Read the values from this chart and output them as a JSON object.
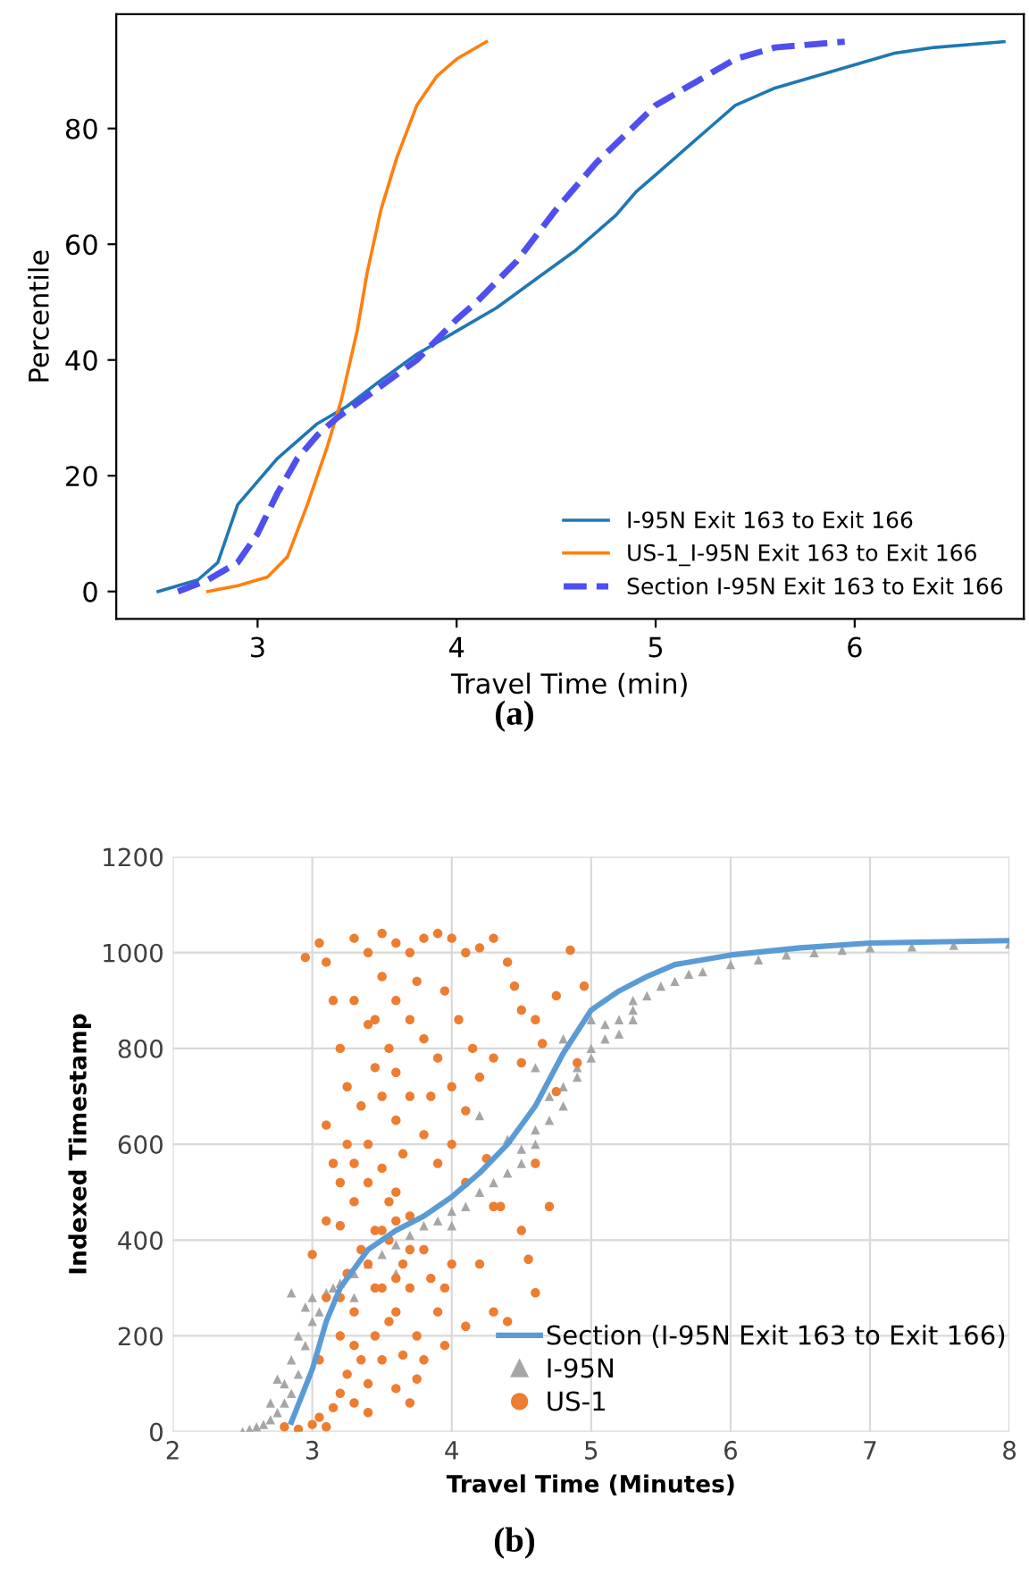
{
  "chart_data": [
    {
      "type": "line",
      "xlabel": "Travel Time (min)",
      "ylabel": "Percentile",
      "xlim": [
        2.29,
        6.85
      ],
      "ylim": [
        -4.75,
        99.75
      ],
      "xticks": [
        3,
        4,
        5,
        6
      ],
      "yticks": [
        0,
        20,
        40,
        60,
        80
      ],
      "grid": false,
      "legend": "bottom right",
      "annotations": [
        "(a)"
      ],
      "series": [
        {
          "name": "I-95N Exit 163 to Exit 166",
          "color": "#1f77b4",
          "line_style": "solid",
          "x": [
            2.5,
            2.7,
            2.8,
            2.85,
            2.9,
            3.0,
            3.1,
            3.2,
            3.3,
            3.45,
            3.6,
            3.8,
            4.0,
            4.2,
            4.4,
            4.6,
            4.8,
            4.9,
            5.0,
            5.1,
            5.2,
            5.3,
            5.4,
            5.6,
            5.8,
            6.0,
            6.2,
            6.4,
            6.75
          ],
          "values": [
            0,
            2,
            5,
            10,
            15,
            19,
            23,
            26,
            29,
            32,
            36,
            41,
            45,
            49,
            54,
            59,
            65,
            69,
            72,
            75,
            78,
            81,
            84,
            87,
            89,
            91,
            93,
            94,
            95
          ]
        },
        {
          "name": "US-1_I-95N Exit 163 to Exit 166",
          "color": "#ff7f0e",
          "line_style": "solid",
          "x": [
            2.75,
            2.9,
            3.05,
            3.15,
            3.25,
            3.35,
            3.42,
            3.5,
            3.55,
            3.62,
            3.7,
            3.8,
            3.9,
            4.0,
            4.15
          ],
          "values": [
            0,
            1,
            2.5,
            6,
            15,
            25,
            33,
            45,
            55,
            66,
            75,
            84,
            89,
            92,
            95
          ]
        },
        {
          "name": "Section I-95N Exit 163 to Exit 166",
          "color": "#4f4ff0",
          "line_style": "dashed",
          "x": [
            2.6,
            2.75,
            2.9,
            3.0,
            3.1,
            3.2,
            3.3,
            3.4,
            3.6,
            3.8,
            4.0,
            4.1,
            4.3,
            4.5,
            4.7,
            4.85,
            5.0,
            5.2,
            5.4,
            5.6,
            5.95
          ],
          "values": [
            0,
            2,
            5,
            10,
            17,
            23,
            27,
            30,
            35,
            40,
            47,
            50,
            57,
            66,
            74,
            79,
            84,
            88,
            92,
            94,
            95
          ]
        }
      ]
    },
    {
      "type": "scatter",
      "xlabel": "Travel Time (Minutes)",
      "ylabel": "Indexed Timestamp",
      "xlim": [
        2,
        8
      ],
      "ylim": [
        0,
        1200
      ],
      "xticks": [
        2,
        3,
        4,
        5,
        6,
        7,
        8
      ],
      "yticks": [
        0,
        200,
        400,
        600,
        800,
        1000,
        1200
      ],
      "grid": true,
      "legend": "bottom right",
      "annotations": [
        "(b)"
      ],
      "series": [
        {
          "name": "Section (I-95N Exit 163 to Exit 166)",
          "type": "line",
          "color": "#5b9bd5",
          "marker": "none",
          "x": [
            2.85,
            3.0,
            3.1,
            3.2,
            3.4,
            3.6,
            3.8,
            4.0,
            4.2,
            4.4,
            4.6,
            4.8,
            5.0,
            5.2,
            5.4,
            5.6,
            6.0,
            6.5,
            7.0,
            8.0
          ],
          "values": [
            20,
            130,
            230,
            300,
            380,
            420,
            450,
            490,
            540,
            600,
            680,
            790,
            880,
            920,
            950,
            975,
            995,
            1010,
            1020,
            1025
          ]
        },
        {
          "name": "I-95N",
          "type": "scatter",
          "color": "#a6a6a6",
          "marker": "triangle",
          "x": [
            2.5,
            2.55,
            2.6,
            2.65,
            2.7,
            2.75,
            2.8,
            2.8,
            2.85,
            2.85,
            2.9,
            2.9,
            2.95,
            2.95,
            2.85,
            3.0,
            3.0,
            3.05,
            3.1,
            3.15,
            3.2,
            3.3,
            3.4,
            3.5,
            3.6,
            3.7,
            3.8,
            3.9,
            4.0,
            4.0,
            4.1,
            4.2,
            4.3,
            4.4,
            4.5,
            4.5,
            4.6,
            4.6,
            4.7,
            4.7,
            4.8,
            4.8,
            4.9,
            4.9,
            5.0,
            5.0,
            5.1,
            5.1,
            5.2,
            5.2,
            5.3,
            5.3,
            5.4,
            5.5,
            5.6,
            5.7,
            5.8,
            6.0,
            6.2,
            6.4,
            6.6,
            6.8,
            7.0,
            7.3,
            7.6,
            8.0,
            4.4,
            4.6,
            5.0,
            5.3,
            3.6,
            3.3,
            2.7,
            2.75,
            4.2,
            4.8
          ],
          "values": [
            0,
            5,
            10,
            15,
            25,
            40,
            60,
            100,
            80,
            150,
            120,
            200,
            180,
            260,
            290,
            230,
            280,
            250,
            290,
            300,
            310,
            330,
            350,
            370,
            390,
            410,
            430,
            440,
            460,
            430,
            470,
            500,
            520,
            540,
            560,
            590,
            600,
            630,
            650,
            700,
            720,
            680,
            760,
            740,
            780,
            800,
            820,
            850,
            860,
            830,
            880,
            900,
            910,
            930,
            940,
            955,
            960,
            975,
            985,
            995,
            1000,
            1005,
            1010,
            1012,
            1015,
            1018,
            610,
            760,
            860,
            860,
            330,
            280,
            60,
            110,
            660,
            820
          ]
        },
        {
          "name": "US-1",
          "type": "scatter",
          "color": "#ed7d31",
          "marker": "circle",
          "x": [
            2.8,
            2.9,
            3.0,
            3.05,
            3.1,
            3.15,
            3.2,
            3.25,
            3.3,
            3.35,
            3.2,
            3.3,
            3.4,
            3.45,
            3.5,
            3.4,
            3.6,
            3.55,
            3.65,
            3.7,
            3.75,
            3.8,
            3.9,
            3.95,
            4.0,
            4.1,
            4.3,
            4.4,
            4.5,
            4.55,
            4.6,
            4.7,
            4.35,
            4.2,
            3.8,
            3.7,
            3.6,
            3.5,
            3.3,
            3.2,
            3.1,
            3.0,
            3.2,
            3.4,
            3.35,
            3.25,
            3.2,
            3.15,
            3.1,
            3.05,
            2.95,
            3.3,
            3.4,
            3.5,
            3.6,
            3.7,
            3.8,
            3.9,
            4.0,
            4.1,
            4.2,
            4.3,
            4.4,
            4.45,
            4.5,
            4.6,
            4.85,
            4.95,
            4.75,
            4.65,
            4.3,
            4.2,
            4.1,
            4.0,
            3.9,
            3.8,
            3.7,
            3.6,
            3.5,
            3.45,
            3.55,
            3.5,
            3.6,
            3.7,
            3.8,
            3.9,
            4.0,
            3.3,
            3.4,
            3.25,
            3.15,
            3.1,
            3.6,
            3.45,
            3.75,
            3.95,
            4.05,
            4.15,
            3.85,
            3.65,
            3.55,
            3.45,
            3.35,
            3.25,
            3.5,
            3.6,
            3.4,
            3.7,
            3.3,
            3.55,
            3.65,
            3.75,
            3.85,
            3.95,
            3.05,
            3.1,
            3.2,
            3.45,
            3.6,
            3.7,
            3.5,
            3.4,
            3.3,
            3.6,
            4.1,
            4.25,
            4.3,
            4.6,
            4.5,
            4.75,
            4.9
          ],
          "values": [
            10,
            5,
            15,
            30,
            10,
            50,
            80,
            120,
            60,
            150,
            200,
            250,
            100,
            200,
            300,
            350,
            250,
            400,
            350,
            300,
            200,
            150,
            250,
            300,
            350,
            220,
            250,
            230,
            420,
            360,
            290,
            470,
            470,
            350,
            380,
            450,
            500,
            550,
            480,
            430,
            440,
            370,
            520,
            600,
            680,
            720,
            800,
            900,
            980,
            1020,
            990,
            1030,
            1000,
            1040,
            1020,
            1000,
            1030,
            1040,
            1030,
            1000,
            1010,
            1030,
            980,
            930,
            880,
            860,
            1005,
            930,
            910,
            810,
            780,
            740,
            670,
            720,
            780,
            820,
            860,
            900,
            950,
            860,
            800,
            700,
            650,
            700,
            620,
            560,
            600,
            900,
            850,
            600,
            560,
            640,
            750,
            760,
            940,
            920,
            860,
            800,
            700,
            580,
            480,
            420,
            380,
            330,
            150,
            90,
            40,
            60,
            180,
            230,
            160,
            110,
            320,
            180,
            150,
            280,
            280,
            300,
            320,
            380,
            420,
            520,
            560,
            440,
            520,
            570,
            470,
            560,
            770,
            710,
            770
          ]
        }
      ]
    }
  ]
}
